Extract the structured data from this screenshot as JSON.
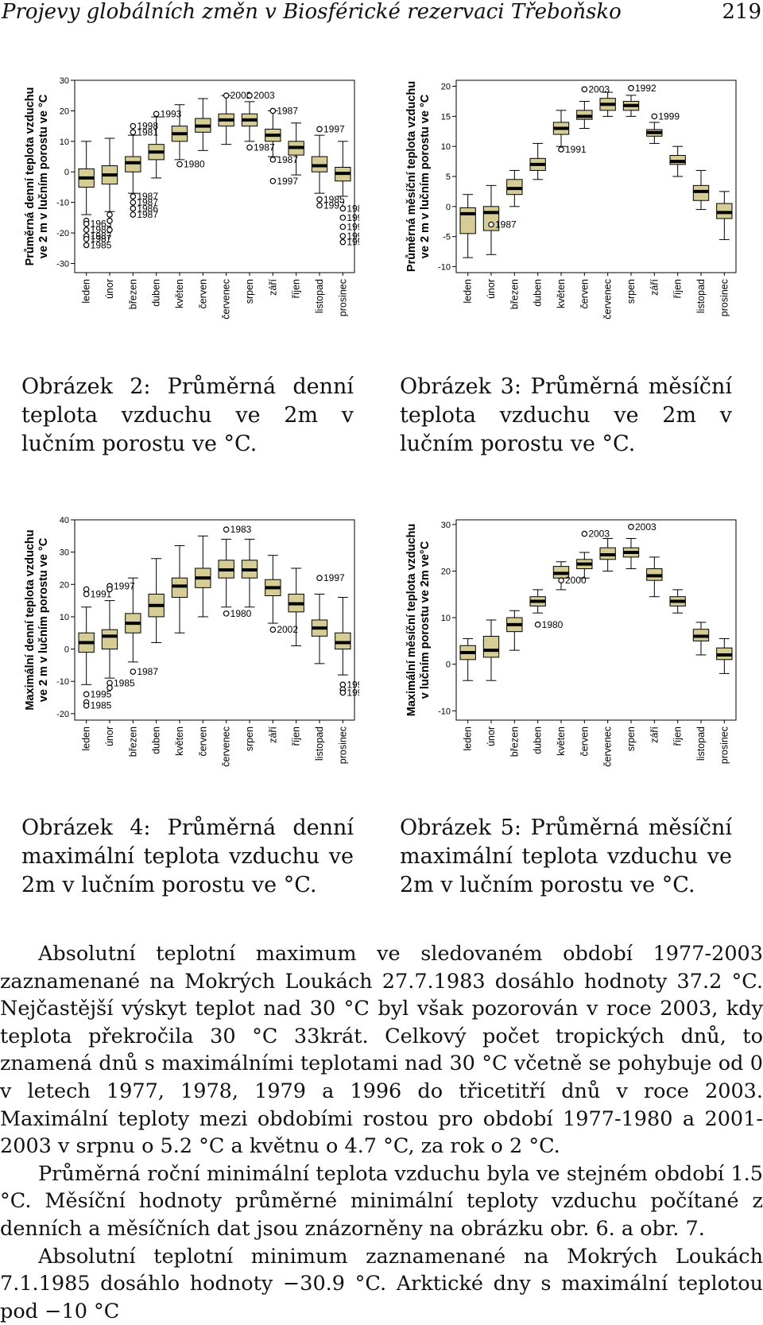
{
  "header": {
    "running_title": "Projevy globálních změn v Biosférické rezervaci Třeboňsko",
    "page_number": "219"
  },
  "figures": [
    {
      "caption": "Obrázek 2: Průměrná denní teplota vzduchu ve 2m v lučním porostu ve °C.",
      "ylabel_lines": [
        "Průměrná denní teplota vzduchu",
        "ve 2 m v lučním porostu ve °C"
      ]
    },
    {
      "caption": "Obrázek 3: Průměrná měsíční teplota vzduchu ve 2m v lučním porostu ve °C.",
      "ylabel_lines": [
        "Průměrná měsíční teplota vzduchu",
        "ve 2 m v lučním porostu ve °C"
      ]
    },
    {
      "caption": "Obrázek 4: Průměrná denní maximální teplota vzduchu ve 2m v lučním porostu ve °C.",
      "ylabel_lines": [
        "Maximální denní teplota vzduchu",
        "ve 2 m v lučním porostu ve °C"
      ]
    },
    {
      "caption": "Obrázek 5: Průměrná měsíční maximální teplota vzduchu ve 2m v lučním porostu ve °C.",
      "ylabel_lines": [
        "Maximální měsíční teplota vzduchu",
        "v lučním porostu ve 2m ve°C"
      ]
    }
  ],
  "paragraphs": [
    "Absolutní teplotní maximum ve sledovaném období 1977-2003 zaznamenané na Mokrých Loukách 27.7.1983 dosáhlo hodnoty 37.2 °C. Nejčastější výskyt teplot nad 30 °C byl však pozorován v roce 2003, kdy teplota překročila 30 °C 33krát. Celkový počet tropických dnů, to znamená dnů s maximálními teplotami nad 30 °C včetně se pohybuje od 0 v letech 1977, 1978, 1979 a 1996 do třicetitří dnů v roce 2003. Maximální teploty mezi obdobími rostou pro období 1977-1980 a 2001-2003 v srpnu o 5.2 °C a květnu o 4.7 °C, za rok o 2 °C.",
    "Průměrná roční minimální teplota vzduchu byla ve stejném období 1.5 °C. Měsíční hodnoty průměrné minimální teploty vzduchu počítané z denních a měsíčních dat jsou znázorněny na obrázku obr. 6. a obr. 7.",
    "Absolutní teplotní minimum zaznamenané na Mokrých Loukách 7.1.1985 dosáhlo hodnoty −30.9 °C. Arktické dny s maximální teplotou pod −10 °C"
  ],
  "chart_data": [
    {
      "type": "boxplot",
      "title": "",
      "xlabel": "",
      "ylabel": "Průměrná denní teplota vzduchu ve 2 m v lučním porostu ve °C",
      "categories": [
        "leden",
        "únor",
        "březen",
        "duben",
        "květen",
        "červen",
        "červenec",
        "srpen",
        "září",
        "říjen",
        "listopad",
        "prosinec"
      ],
      "yticks": [
        -30,
        -20,
        -10,
        0,
        10,
        20,
        30
      ],
      "ylim": [
        -33,
        30
      ],
      "box_fill": "#d6cd96",
      "boxes": [
        {
          "q1": -5,
          "median": -2,
          "q3": 1,
          "whislo": -14,
          "whishi": 10
        },
        {
          "q1": -4,
          "median": -1,
          "q3": 2,
          "whislo": -13,
          "whishi": 11
        },
        {
          "q1": 0,
          "median": 3,
          "q3": 5,
          "whislo": -7,
          "whishi": 12
        },
        {
          "q1": 4,
          "median": 6.5,
          "q3": 9,
          "whislo": -2,
          "whishi": 18
        },
        {
          "q1": 10,
          "median": 12.5,
          "q3": 15,
          "whislo": 4,
          "whishi": 22
        },
        {
          "q1": 13,
          "median": 15,
          "q3": 17.5,
          "whislo": 7,
          "whishi": 24
        },
        {
          "q1": 15,
          "median": 17,
          "q3": 19,
          "whislo": 9,
          "whishi": 25
        },
        {
          "q1": 15,
          "median": 17,
          "q3": 19,
          "whislo": 10,
          "whishi": 23
        },
        {
          "q1": 10,
          "median": 12,
          "q3": 14,
          "whislo": 5,
          "whishi": 20
        },
        {
          "q1": 5.5,
          "median": 8,
          "q3": 10,
          "whislo": -1,
          "whishi": 16
        },
        {
          "q1": 0,
          "median": 2,
          "q3": 5,
          "whislo": -7,
          "whishi": 12
        },
        {
          "q1": -3,
          "median": -0.5,
          "q3": 1.5,
          "whislo": -8,
          "whishi": 10
        }
      ],
      "outliers": [
        {
          "cat": 0,
          "y": -16,
          "label": ""
        },
        {
          "cat": 0,
          "y": -17,
          "label": "1963"
        },
        {
          "cat": 0,
          "y": -19,
          "label": "1987"
        },
        {
          "cat": 0,
          "y": -21,
          "label": "1987"
        },
        {
          "cat": 0,
          "y": -22,
          "label": "1987"
        },
        {
          "cat": 0,
          "y": -24,
          "label": "1985"
        },
        {
          "cat": 1,
          "y": -14,
          "label": ""
        },
        {
          "cat": 1,
          "y": -16,
          "label": ""
        },
        {
          "cat": 1,
          "y": -19,
          "label": ""
        },
        {
          "cat": 2,
          "y": -8,
          "label": "1987"
        },
        {
          "cat": 2,
          "y": -10,
          "label": "1987"
        },
        {
          "cat": 2,
          "y": -12,
          "label": "1986"
        },
        {
          "cat": 2,
          "y": -14,
          "label": "1987"
        },
        {
          "cat": 3,
          "y": 19,
          "label": "1993"
        },
        {
          "cat": 2,
          "y": 15,
          "label": "1998"
        },
        {
          "cat": 2,
          "y": 13,
          "label": "1981"
        },
        {
          "cat": 4,
          "y": 2.5,
          "label": "1980"
        },
        {
          "cat": 6,
          "y": 25,
          "label": "2002"
        },
        {
          "cat": 7,
          "y": 25,
          "label": "2003"
        },
        {
          "cat": 8,
          "y": 20,
          "label": "1987"
        },
        {
          "cat": 7,
          "y": 8,
          "label": "1987"
        },
        {
          "cat": 8,
          "y": 4,
          "label": "1987"
        },
        {
          "cat": 8,
          "y": -3,
          "label": "1997"
        },
        {
          "cat": 10,
          "y": 14,
          "label": "1997"
        },
        {
          "cat": 10,
          "y": -9,
          "label": "1985"
        },
        {
          "cat": 10,
          "y": -11,
          "label": "1997"
        },
        {
          "cat": 11,
          "y": -12,
          "label": "198"
        },
        {
          "cat": 11,
          "y": -15,
          "label": "199"
        },
        {
          "cat": 11,
          "y": -18,
          "label": "199"
        },
        {
          "cat": 11,
          "y": -21,
          "label": "199"
        },
        {
          "cat": 11,
          "y": -23,
          "label": "199"
        }
      ]
    },
    {
      "type": "boxplot",
      "title": "",
      "xlabel": "",
      "ylabel": "Průměrná měsíční teplota vzduchu ve 2 m v lučním porostu ve °C",
      "categories": [
        "leden",
        "únor",
        "březen",
        "duben",
        "květen",
        "červen",
        "červenec",
        "srpen",
        "září",
        "říjen",
        "listopad",
        "prosinec"
      ],
      "yticks": [
        -10,
        -5,
        0,
        5,
        10,
        15,
        20
      ],
      "ylim": [
        -11,
        21
      ],
      "box_fill": "#d6cd96",
      "boxes": [
        {
          "q1": -4.5,
          "median": -1.2,
          "q3": -0.2,
          "whislo": -8.5,
          "whishi": 2
        },
        {
          "q1": -4,
          "median": -1,
          "q3": 0,
          "whislo": -8,
          "whishi": 3.5
        },
        {
          "q1": 2,
          "median": 3,
          "q3": 4.5,
          "whislo": 0,
          "whishi": 6
        },
        {
          "q1": 6,
          "median": 7,
          "q3": 8,
          "whislo": 4.5,
          "whishi": 10.5
        },
        {
          "q1": 12,
          "median": 13,
          "q3": 14,
          "whislo": 10,
          "whishi": 16
        },
        {
          "q1": 14.5,
          "median": 15,
          "q3": 16,
          "whislo": 13,
          "whishi": 17.5
        },
        {
          "q1": 16,
          "median": 17,
          "q3": 18,
          "whislo": 15,
          "whishi": 19
        },
        {
          "q1": 16,
          "median": 16.8,
          "q3": 17.5,
          "whislo": 15,
          "whishi": 18.5
        },
        {
          "q1": 11.7,
          "median": 12.3,
          "q3": 12.8,
          "whislo": 10.5,
          "whishi": 14
        },
        {
          "q1": 7,
          "median": 7.5,
          "q3": 8.5,
          "whislo": 5,
          "whishi": 10
        },
        {
          "q1": 1,
          "median": 2.5,
          "q3": 3.5,
          "whislo": -0.5,
          "whishi": 6
        },
        {
          "q1": -2,
          "median": -1,
          "q3": 0.5,
          "whislo": -5.5,
          "whishi": 2.5
        }
      ],
      "outliers": [
        {
          "cat": 1,
          "y": -3,
          "label": "1987"
        },
        {
          "cat": 4,
          "y": 9.5,
          "label": "1991"
        },
        {
          "cat": 5,
          "y": 19.5,
          "label": "2003"
        },
        {
          "cat": 7,
          "y": 19.7,
          "label": "1992"
        },
        {
          "cat": 8,
          "y": 15,
          "label": "1999"
        }
      ]
    },
    {
      "type": "boxplot",
      "title": "",
      "xlabel": "",
      "ylabel": "Maximální denní teplota vzduchu ve 2 m v lučním porostu ve °C",
      "categories": [
        "leden",
        "únor",
        "březen",
        "duben",
        "květen",
        "červen",
        "červenec",
        "srpen",
        "září",
        "říjen",
        "listopad",
        "prosinec"
      ],
      "yticks": [
        -20,
        -10,
        0,
        10,
        20,
        30,
        40
      ],
      "ylim": [
        -22,
        40
      ],
      "box_fill": "#d6cd96",
      "boxes": [
        {
          "q1": -1,
          "median": 2,
          "q3": 5,
          "whislo": -11,
          "whishi": 13
        },
        {
          "q1": 0,
          "median": 4,
          "q3": 6,
          "whislo": -9,
          "whishi": 15
        },
        {
          "q1": 5,
          "median": 8,
          "q3": 11,
          "whislo": -4,
          "whishi": 22
        },
        {
          "q1": 10,
          "median": 13.5,
          "q3": 17,
          "whislo": 2,
          "whishi": 28
        },
        {
          "q1": 16,
          "median": 19.5,
          "q3": 22,
          "whislo": 5,
          "whishi": 32
        },
        {
          "q1": 19,
          "median": 22,
          "q3": 25,
          "whislo": 10,
          "whishi": 35
        },
        {
          "q1": 22,
          "median": 24.5,
          "q3": 27.5,
          "whislo": 13,
          "whishi": 34
        },
        {
          "q1": 22,
          "median": 24.5,
          "q3": 27.5,
          "whislo": 13,
          "whishi": 34
        },
        {
          "q1": 16.5,
          "median": 19,
          "q3": 21.5,
          "whislo": 8,
          "whishi": 29
        },
        {
          "q1": 11.5,
          "median": 14,
          "q3": 17,
          "whislo": 1,
          "whishi": 25
        },
        {
          "q1": 4,
          "median": 6.5,
          "q3": 9,
          "whislo": -4.5,
          "whishi": 17
        },
        {
          "q1": 0,
          "median": 2,
          "q3": 5,
          "whislo": -8,
          "whishi": 16
        }
      ],
      "outliers": [
        {
          "cat": 0,
          "y": 18.5,
          "label": ""
        },
        {
          "cat": 0,
          "y": 17,
          "label": "1991"
        },
        {
          "cat": 0,
          "y": -14,
          "label": "1995"
        },
        {
          "cat": 0,
          "y": -16.5,
          "label": ""
        },
        {
          "cat": 0,
          "y": -17.5,
          "label": "1985"
        },
        {
          "cat": 1,
          "y": 19.5,
          "label": "1997"
        },
        {
          "cat": 1,
          "y": 18.5,
          "label": ""
        },
        {
          "cat": 1,
          "y": -10.5,
          "label": "1985"
        },
        {
          "cat": 1,
          "y": -12,
          "label": ""
        },
        {
          "cat": 2,
          "y": -7,
          "label": "1987"
        },
        {
          "cat": 6,
          "y": 37,
          "label": "1983"
        },
        {
          "cat": 6,
          "y": 11,
          "label": "1980"
        },
        {
          "cat": 8,
          "y": 6,
          "label": "2002"
        },
        {
          "cat": 10,
          "y": 22,
          "label": "1997"
        },
        {
          "cat": 11,
          "y": -11,
          "label": "199"
        },
        {
          "cat": 11,
          "y": -12.5,
          "label": ""
        },
        {
          "cat": 11,
          "y": -13.5,
          "label": "199"
        }
      ]
    },
    {
      "type": "boxplot",
      "title": "",
      "xlabel": "",
      "ylabel": "Maximální měsíční teplota vzduchu v lučním porostu ve 2m ve°C",
      "categories": [
        "leden",
        "únor",
        "březen",
        "duben",
        "květen",
        "červen",
        "červenec",
        "srpen",
        "září",
        "říjen",
        "listopad",
        "prosinec"
      ],
      "yticks": [
        -10,
        0,
        10,
        20,
        30
      ],
      "ylim": [
        -12,
        31
      ],
      "box_fill": "#d6cd96",
      "boxes": [
        {
          "q1": 1,
          "median": 2.5,
          "q3": 4,
          "whislo": -3.5,
          "whishi": 5.5
        },
        {
          "q1": 1.5,
          "median": 3,
          "q3": 6,
          "whislo": -3.5,
          "whishi": 9.5
        },
        {
          "q1": 7,
          "median": 8.5,
          "q3": 10,
          "whislo": 3,
          "whishi": 11.5
        },
        {
          "q1": 12.5,
          "median": 13.5,
          "q3": 14.5,
          "whislo": 11,
          "whishi": 16
        },
        {
          "q1": 18.5,
          "median": 19.5,
          "q3": 21,
          "whislo": 16,
          "whishi": 22
        },
        {
          "q1": 20.5,
          "median": 21.5,
          "q3": 22.5,
          "whislo": 18.5,
          "whishi": 24
        },
        {
          "q1": 22.5,
          "median": 23.5,
          "q3": 25,
          "whislo": 20,
          "whishi": 27
        },
        {
          "q1": 23,
          "median": 24,
          "q3": 25,
          "whislo": 20.5,
          "whishi": 27
        },
        {
          "q1": 18,
          "median": 19,
          "q3": 20.5,
          "whislo": 14.5,
          "whishi": 23
        },
        {
          "q1": 12.5,
          "median": 13.5,
          "q3": 14.5,
          "whislo": 11,
          "whishi": 16
        },
        {
          "q1": 5,
          "median": 6,
          "q3": 7.5,
          "whislo": 2,
          "whishi": 9
        },
        {
          "q1": 1,
          "median": 2,
          "q3": 3.5,
          "whislo": -2,
          "whishi": 5.5
        }
      ],
      "outliers": [
        {
          "cat": 4,
          "y": 18,
          "label": "2000"
        },
        {
          "cat": 3,
          "y": 8.5,
          "label": "1980"
        },
        {
          "cat": 5,
          "y": 28,
          "label": "2003"
        },
        {
          "cat": 7,
          "y": 29.5,
          "label": "2003"
        }
      ]
    }
  ]
}
